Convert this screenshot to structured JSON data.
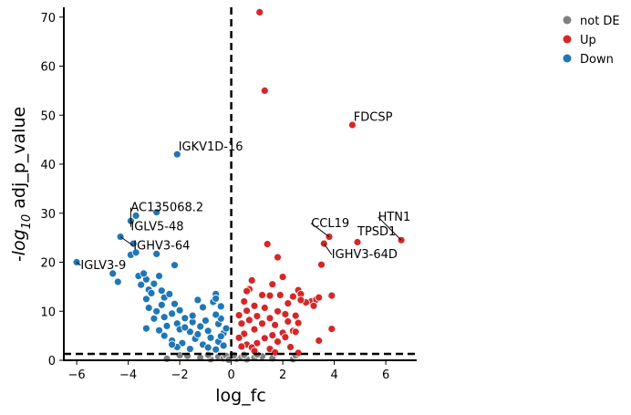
{
  "chart_data": {
    "type": "scatter",
    "title": "",
    "xlabel": "log_fc",
    "ylabel_base": "-log",
    "ylabel_sub": "10",
    "ylabel_rest": " adj_p_value",
    "xlim": [
      -6.5,
      7.2
    ],
    "ylim": [
      0,
      72
    ],
    "xticks": [
      -6,
      -4,
      -2,
      0,
      2,
      4,
      6
    ],
    "yticks": [
      0,
      10,
      20,
      30,
      40,
      50,
      60,
      70
    ],
    "thresholds": {
      "log_fc": 0,
      "adj_p_value_neglog10": 1.3
    },
    "legend": {
      "placement": "top-right",
      "entries": [
        {
          "name": "not DE",
          "color": "#808080"
        },
        {
          "name": "Up",
          "color": "#d62728"
        },
        {
          "name": "Down",
          "color": "#1f77b4"
        }
      ]
    },
    "series": [
      {
        "name": "Down",
        "color": "#1f77b4",
        "points": [
          [
            -6.0,
            20.0
          ],
          [
            -4.4,
            16.0
          ],
          [
            -4.6,
            17.7
          ],
          [
            -4.3,
            25.2
          ],
          [
            -3.9,
            28.4
          ],
          [
            -3.7,
            29.5
          ],
          [
            -3.8,
            23.8
          ],
          [
            -3.9,
            21.5
          ],
          [
            -3.7,
            22.0
          ],
          [
            -3.6,
            17.2
          ],
          [
            -3.3,
            16.5
          ],
          [
            -3.4,
            17.7
          ],
          [
            -3.2,
            14.4
          ],
          [
            -3.0,
            15.6
          ],
          [
            -2.8,
            17.2
          ],
          [
            -2.9,
            21.7
          ],
          [
            -2.7,
            14.2
          ],
          [
            -2.2,
            19.4
          ],
          [
            -3.5,
            15.4
          ],
          [
            -3.3,
            12.5
          ],
          [
            -3.1,
            13.7
          ],
          [
            -2.6,
            12.8
          ],
          [
            -2.4,
            13.5
          ],
          [
            -2.2,
            11.5
          ],
          [
            -2.7,
            11.3
          ],
          [
            -3.2,
            10.7
          ],
          [
            -2.9,
            10.0
          ],
          [
            -2.6,
            8.8
          ],
          [
            -2.3,
            9.5
          ],
          [
            -2.0,
            10.2
          ],
          [
            -1.8,
            8.6
          ],
          [
            -1.3,
            12.3
          ],
          [
            -1.1,
            10.8
          ],
          [
            -0.7,
            11.9
          ],
          [
            -0.6,
            13.5
          ],
          [
            -0.6,
            12.6
          ],
          [
            -0.4,
            11.0
          ],
          [
            -1.0,
            8.1
          ],
          [
            -1.5,
            7.8
          ],
          [
            -2.1,
            7.5
          ],
          [
            -2.5,
            7.0
          ],
          [
            -3.0,
            8.5
          ],
          [
            -3.3,
            6.5
          ],
          [
            -2.8,
            6.1
          ],
          [
            -2.0,
            6.3
          ],
          [
            -1.6,
            5.8
          ],
          [
            -1.2,
            6.9
          ],
          [
            -0.9,
            6.0
          ],
          [
            -0.5,
            7.4
          ],
          [
            -0.3,
            5.5
          ],
          [
            -0.4,
            8.5
          ],
          [
            -0.6,
            9.3
          ],
          [
            -0.2,
            6.5
          ],
          [
            -2.6,
            5.0
          ],
          [
            -2.3,
            4.0
          ],
          [
            -1.9,
            3.5
          ],
          [
            -1.4,
            4.4
          ],
          [
            -1.1,
            3.2
          ],
          [
            -0.8,
            4.6
          ],
          [
            -0.5,
            3.8
          ],
          [
            -0.3,
            3.0
          ],
          [
            -2.1,
            2.7
          ],
          [
            -1.6,
            2.3
          ],
          [
            -1.3,
            5.3
          ],
          [
            -0.9,
            2.6
          ],
          [
            -0.6,
            2.2
          ],
          [
            -0.4,
            4.9
          ],
          [
            -2.9,
            30.2
          ],
          [
            -2.1,
            42.0
          ],
          [
            -2.3,
            3.2
          ],
          [
            -1.8,
            6.7
          ],
          [
            -1.5,
            9.1
          ]
        ]
      },
      {
        "name": "Up",
        "color": "#d62728",
        "points": [
          [
            1.1,
            71.0
          ],
          [
            1.3,
            55.0
          ],
          [
            4.7,
            48.0
          ],
          [
            6.6,
            24.5
          ],
          [
            4.9,
            24.1
          ],
          [
            3.6,
            23.8
          ],
          [
            3.8,
            25.2
          ],
          [
            3.5,
            19.5
          ],
          [
            1.4,
            23.7
          ],
          [
            1.8,
            21.0
          ],
          [
            2.0,
            17.0
          ],
          [
            1.6,
            15.5
          ],
          [
            0.8,
            16.3
          ],
          [
            0.7,
            14.5
          ],
          [
            0.6,
            14.1
          ],
          [
            1.2,
            13.3
          ],
          [
            1.5,
            13.2
          ],
          [
            1.9,
            13.3
          ],
          [
            2.4,
            13.0
          ],
          [
            2.6,
            14.3
          ],
          [
            2.7,
            13.5
          ],
          [
            3.1,
            12.0
          ],
          [
            3.3,
            12.4
          ],
          [
            3.4,
            12.8
          ],
          [
            3.9,
            13.2
          ],
          [
            3.2,
            11.1
          ],
          [
            2.9,
            11.8
          ],
          [
            2.7,
            12.3
          ],
          [
            2.2,
            11.6
          ],
          [
            1.8,
            10.0
          ],
          [
            1.3,
            10.7
          ],
          [
            0.9,
            11.1
          ],
          [
            0.6,
            10.1
          ],
          [
            0.5,
            12.0
          ],
          [
            0.3,
            9.2
          ],
          [
            1.0,
            9.0
          ],
          [
            1.5,
            8.6
          ],
          [
            2.1,
            9.4
          ],
          [
            2.5,
            9.1
          ],
          [
            2.6,
            7.6
          ],
          [
            2.2,
            7.9
          ],
          [
            1.7,
            7.2
          ],
          [
            1.2,
            7.5
          ],
          [
            0.7,
            8.2
          ],
          [
            0.4,
            7.5
          ],
          [
            3.9,
            6.4
          ],
          [
            2.4,
            6.0
          ],
          [
            2.0,
            5.6
          ],
          [
            1.6,
            5.1
          ],
          [
            0.9,
            6.3
          ],
          [
            0.5,
            5.4
          ],
          [
            0.3,
            4.6
          ],
          [
            1.3,
            4.5
          ],
          [
            2.1,
            4.7
          ],
          [
            2.5,
            5.8
          ],
          [
            1.8,
            3.8
          ],
          [
            1.0,
            3.5
          ],
          [
            0.6,
            3.2
          ],
          [
            0.4,
            2.8
          ],
          [
            3.4,
            4.0
          ],
          [
            2.3,
            2.7
          ],
          [
            1.5,
            2.3
          ],
          [
            0.8,
            2.6
          ],
          [
            2.6,
            1.5
          ],
          [
            0.9,
            1.9
          ],
          [
            1.7,
            1.6
          ]
        ]
      },
      {
        "name": "not DE",
        "color": "#808080",
        "points": [
          [
            -2.5,
            0.3
          ],
          [
            -1.2,
            0.5
          ],
          [
            -0.8,
            0.2
          ],
          [
            -0.5,
            0.7
          ],
          [
            -0.3,
            0.4
          ],
          [
            -0.2,
            0.9
          ],
          [
            -0.1,
            0.1
          ],
          [
            0.2,
            0.3
          ],
          [
            0.4,
            0.6
          ],
          [
            0.6,
            0.2
          ],
          [
            0.9,
            0.5
          ],
          [
            1.2,
            0.8
          ],
          [
            1.6,
            0.4
          ],
          [
            2.4,
            0.2
          ],
          [
            -1.7,
            0.9
          ],
          [
            -0.9,
            1.1
          ],
          [
            0.1,
            1.0
          ],
          [
            0.5,
            1.1
          ],
          [
            1.0,
            1.2
          ],
          [
            -2.0,
            1.0
          ],
          [
            2.5,
            1.0
          ]
        ]
      }
    ],
    "annotations": [
      {
        "text": "FDCSP",
        "x": 4.7,
        "y": 48.0,
        "lx": 4.75,
        "ly": 48.8
      },
      {
        "text": "IGKV1D-16",
        "x": -2.1,
        "y": 42.0,
        "lx": -2.05,
        "ly": 42.8
      },
      {
        "text": "AC135068.2",
        "x": -3.9,
        "y": 28.4,
        "lx": -3.9,
        "ly": 30.4
      },
      {
        "text": "IGLV5-48",
        "x": -3.9,
        "y": 28.4,
        "lx": -3.9,
        "ly": 26.5
      },
      {
        "text": "IGHV3-64",
        "x": -4.3,
        "y": 25.2,
        "lx": -3.8,
        "ly": 22.6
      },
      {
        "text": "IGLV3-9",
        "x": -6.0,
        "y": 20.0,
        "lx": -5.85,
        "ly": 18.6
      },
      {
        "text": "CCL19",
        "x": 3.8,
        "y": 25.2,
        "lx": 3.1,
        "ly": 27.2
      },
      {
        "text": "TPSD1",
        "x": 4.9,
        "y": 24.1,
        "lx": 4.9,
        "ly": 25.5
      },
      {
        "text": "HTN1",
        "x": 6.6,
        "y": 24.5,
        "lx": 5.7,
        "ly": 28.5
      },
      {
        "text": "IGHV3-64D",
        "x": 3.6,
        "y": 23.8,
        "lx": 3.9,
        "ly": 20.8
      }
    ]
  }
}
